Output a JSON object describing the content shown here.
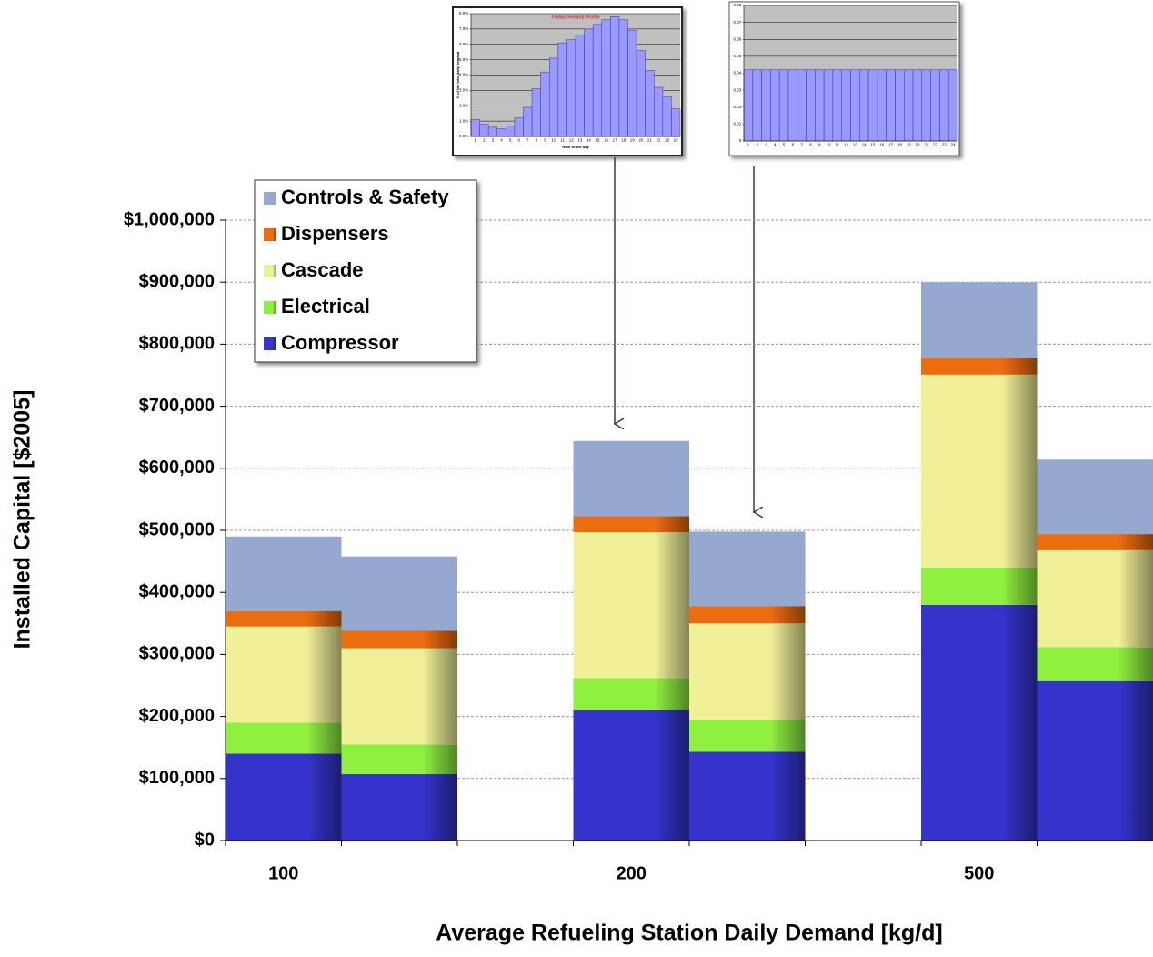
{
  "chart_data": [
    {
      "type": "bar",
      "x_label": "Average Refueling Station Daily Demand [kg/d]",
      "y_label": "Installed Capital [$2005]",
      "categories": [
        "100",
        null,
        null,
        "200",
        null,
        null,
        "500",
        null
      ],
      "series": [
        {
          "name": "Compressor",
          "color": "#3434cc",
          "values": [
            140000,
            107000,
            null,
            210000,
            143000,
            null,
            380000,
            257000
          ]
        },
        {
          "name": "Electrical",
          "color": "#90f040",
          "values": [
            50000,
            48000,
            null,
            52000,
            52000,
            null,
            60000,
            55000
          ]
        },
        {
          "name": "Cascade",
          "color": "#f0f098",
          "values": [
            155000,
            155000,
            null,
            235000,
            155000,
            null,
            311000,
            156000
          ]
        },
        {
          "name": "Dispensers",
          "color": "#ec6c10",
          "values": [
            25000,
            28000,
            null,
            26000,
            28000,
            null,
            27000,
            26000
          ]
        },
        {
          "name": "Controls & Safety",
          "color": "#95a8d0",
          "values": [
            120000,
            120000,
            null,
            121000,
            120000,
            null,
            122000,
            120000
          ]
        }
      ],
      "ylim": [
        0,
        1000000
      ],
      "yticks": [
        {
          "value": 0,
          "label": "$0"
        },
        {
          "value": 100000,
          "label": "$100,000"
        },
        {
          "value": 200000,
          "label": "$200,000"
        },
        {
          "value": 300000,
          "label": "$300,000"
        },
        {
          "value": 400000,
          "label": "$400,000"
        },
        {
          "value": 500000,
          "label": "$500,000"
        },
        {
          "value": 600000,
          "label": "$600,000"
        },
        {
          "value": 700000,
          "label": "$700,000"
        },
        {
          "value": 800000,
          "label": "$800,000"
        },
        {
          "value": 900000,
          "label": "$900,000"
        },
        {
          "value": 1000000,
          "label": "$1,000,000"
        }
      ],
      "grid": true,
      "stacked": true,
      "legend": "upper left"
    },
    {
      "type": "bar",
      "title": "Friday Demand Profile",
      "x_label": "Hour of the day",
      "y_label": "% of the total daily demand",
      "categories": [
        "1",
        "2",
        "3",
        "4",
        "5",
        "6",
        "7",
        "8",
        "9",
        "10",
        "11",
        "12",
        "13",
        "14",
        "15",
        "16",
        "17",
        "18",
        "19",
        "20",
        "21",
        "22",
        "23",
        "24"
      ],
      "values": [
        1.1,
        0.8,
        0.6,
        0.5,
        0.7,
        1.2,
        1.9,
        3.1,
        4.2,
        5.1,
        6.1,
        6.3,
        6.6,
        7.0,
        7.3,
        7.6,
        7.8,
        7.6,
        6.9,
        5.6,
        4.3,
        3.2,
        2.6,
        1.8
      ],
      "color": "#9999ff",
      "ylim": [
        0,
        8
      ],
      "yticks": [
        {
          "value": 0,
          "label": "0.0%"
        },
        {
          "value": 1,
          "label": "1.0%"
        },
        {
          "value": 2,
          "label": "2.0%"
        },
        {
          "value": 3,
          "label": "3.0%"
        },
        {
          "value": 4,
          "label": "4.0%"
        },
        {
          "value": 5,
          "label": "5.0%"
        },
        {
          "value": 6,
          "label": "6.0%"
        },
        {
          "value": 7,
          "label": "7.0%"
        },
        {
          "value": 8,
          "label": "8.0%"
        }
      ],
      "grid": true
    },
    {
      "type": "bar",
      "categories": [
        "1",
        "2",
        "3",
        "4",
        "5",
        "6",
        "7",
        "8",
        "9",
        "10",
        "11",
        "12",
        "13",
        "14",
        "15",
        "16",
        "17",
        "18",
        "19",
        "20",
        "21",
        "22",
        "23",
        "24"
      ],
      "values": [
        0.042,
        0.042,
        0.042,
        0.042,
        0.042,
        0.042,
        0.042,
        0.042,
        0.042,
        0.042,
        0.042,
        0.042,
        0.042,
        0.042,
        0.042,
        0.042,
        0.042,
        0.042,
        0.042,
        0.042,
        0.042,
        0.042,
        0.042,
        0.042
      ],
      "color": "#9999ff",
      "ylim": [
        0,
        0.08
      ],
      "yticks": [
        0,
        0.01,
        0.02,
        0.03,
        0.04,
        0.05,
        0.06,
        0.07,
        0.08
      ],
      "grid": true
    }
  ]
}
